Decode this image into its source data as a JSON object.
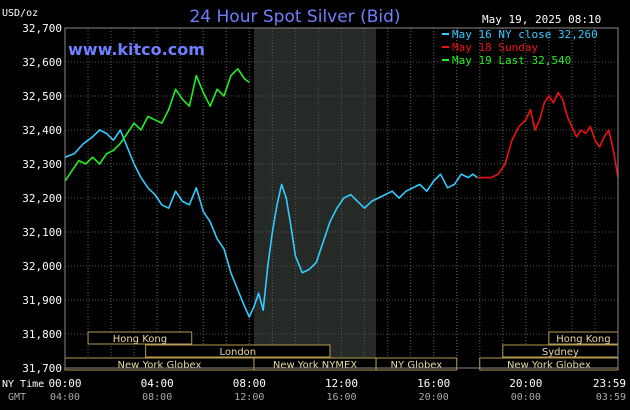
{
  "chart_data": {
    "type": "line",
    "title": "24 Hour Spot Silver (Bid)",
    "watermark": "www.kitco.com",
    "timestamp": "May 19, 2025 08:10",
    "y_unit_label": "USD/oz",
    "ylim": [
      31.7,
      32.7
    ],
    "y_ticks": [
      "32,700",
      "32,600",
      "32,500",
      "32,400",
      "32,300",
      "32,200",
      "32,100",
      "32,000",
      "31,900",
      "31,800",
      "31,700"
    ],
    "y_tick_values": [
      32.7,
      32.6,
      32.5,
      32.4,
      32.3,
      32.2,
      32.1,
      32.0,
      31.9,
      31.8,
      31.7
    ],
    "xlim_hours": [
      0,
      24
    ],
    "x_axis_ny_label": "NY Time",
    "x_axis_gmt_label": "GMT",
    "x_ticks_ny": [
      "00:00",
      "04:00",
      "08:00",
      "12:00",
      "16:00",
      "20:00",
      "23:59"
    ],
    "x_ticks_gmt": [
      "04:00",
      "08:00",
      "12:00",
      "16:00",
      "20:00",
      "00:00",
      "03:59"
    ],
    "x_tick_hours": [
      0,
      4,
      8,
      12,
      16,
      20,
      24
    ],
    "shaded_region_hours": [
      8.2,
      13.5
    ],
    "legend": [
      {
        "text": "May 16 NY close 32,260",
        "color": "#33ccff"
      },
      {
        "text": "May 18 Sunday",
        "color": "#ee1111"
      },
      {
        "text": "May 19 Last 32,540",
        "color": "#22ee22"
      }
    ],
    "series": [
      {
        "name": "May 16 NY close 32,260",
        "color": "#33ccff",
        "x": [
          0,
          0.4,
          0.8,
          1.2,
          1.5,
          1.8,
          2.1,
          2.4,
          2.7,
          3.0,
          3.3,
          3.6,
          3.9,
          4.2,
          4.5,
          4.8,
          5.1,
          5.4,
          5.7,
          6.0,
          6.3,
          6.6,
          6.9,
          7.2,
          7.5,
          7.8,
          8.0,
          8.2,
          8.4,
          8.6,
          8.8,
          9.0,
          9.2,
          9.4,
          9.6,
          9.8,
          10.0,
          10.3,
          10.6,
          10.9,
          11.2,
          11.5,
          11.8,
          12.1,
          12.4,
          12.7,
          13.0,
          13.3,
          13.6,
          13.9,
          14.2,
          14.5,
          14.8,
          15.1,
          15.4,
          15.7,
          16.0,
          16.3,
          16.6,
          16.9,
          17.2,
          17.5,
          17.7,
          17.9
        ],
        "values": [
          32.32,
          32.33,
          32.36,
          32.38,
          32.4,
          32.39,
          32.37,
          32.4,
          32.35,
          32.3,
          32.26,
          32.23,
          32.21,
          32.18,
          32.17,
          32.22,
          32.19,
          32.18,
          32.23,
          32.16,
          32.13,
          32.08,
          32.05,
          31.98,
          31.93,
          31.88,
          31.85,
          31.88,
          31.92,
          31.87,
          32.0,
          32.1,
          32.18,
          32.24,
          32.2,
          32.12,
          32.03,
          31.98,
          31.99,
          32.01,
          32.07,
          32.13,
          32.17,
          32.2,
          32.21,
          32.19,
          32.17,
          32.19,
          32.2,
          32.21,
          32.22,
          32.2,
          32.22,
          32.23,
          32.24,
          32.22,
          32.25,
          32.27,
          32.23,
          32.24,
          32.27,
          32.26,
          32.27,
          32.26
        ]
      },
      {
        "name": "May 18 Sunday",
        "color": "#ee1111",
        "x": [
          17.9,
          18.2,
          18.5,
          18.8,
          19.1,
          19.4,
          19.7,
          20.0,
          20.2,
          20.4,
          20.6,
          20.8,
          21.0,
          21.2,
          21.4,
          21.6,
          21.8,
          22.0,
          22.2,
          22.4,
          22.6,
          22.8,
          23.0,
          23.2,
          23.4,
          23.6,
          23.8,
          24.0
        ],
        "values": [
          32.26,
          32.26,
          32.26,
          32.27,
          32.3,
          32.37,
          32.41,
          32.43,
          32.46,
          32.4,
          32.43,
          32.48,
          32.5,
          32.48,
          32.51,
          32.49,
          32.44,
          32.41,
          32.38,
          32.4,
          32.39,
          32.41,
          32.37,
          32.35,
          32.38,
          32.4,
          32.34,
          32.26
        ]
      },
      {
        "name": "May 19 Last 32,540",
        "color": "#22ee22",
        "x": [
          0,
          0.3,
          0.6,
          0.9,
          1.2,
          1.5,
          1.8,
          2.1,
          2.4,
          2.7,
          3.0,
          3.3,
          3.6,
          3.9,
          4.2,
          4.5,
          4.8,
          5.1,
          5.4,
          5.7,
          6.0,
          6.3,
          6.6,
          6.9,
          7.2,
          7.5,
          7.8,
          8.0
        ],
        "values": [
          32.25,
          32.28,
          32.31,
          32.3,
          32.32,
          32.3,
          32.33,
          32.34,
          32.36,
          32.39,
          32.42,
          32.4,
          32.44,
          32.43,
          32.42,
          32.46,
          32.52,
          32.49,
          32.47,
          32.56,
          32.51,
          32.47,
          32.52,
          32.5,
          32.56,
          32.58,
          32.55,
          32.54
        ]
      }
    ],
    "sessions": [
      {
        "label": "Hong Kong",
        "start": 1.0,
        "end": 5.5,
        "row": 0
      },
      {
        "label": "London",
        "start": 3.5,
        "end": 11.5,
        "row": 1
      },
      {
        "label": "New York Globex",
        "start": 0,
        "end": 8.2,
        "row": 2
      },
      {
        "label": "New York NYMEX",
        "start": 8.2,
        "end": 13.5,
        "row": 2
      },
      {
        "label": "NY Globex",
        "start": 13.5,
        "end": 17.0,
        "row": 2
      },
      {
        "label": "Hong Kong",
        "start": 21.0,
        "end": 24.0,
        "row": 0
      },
      {
        "label": "Sydney",
        "start": 19.0,
        "end": 24.0,
        "row": 1
      },
      {
        "label": "New York Globex",
        "start": 18.0,
        "end": 24.0,
        "row": 2
      }
    ]
  }
}
